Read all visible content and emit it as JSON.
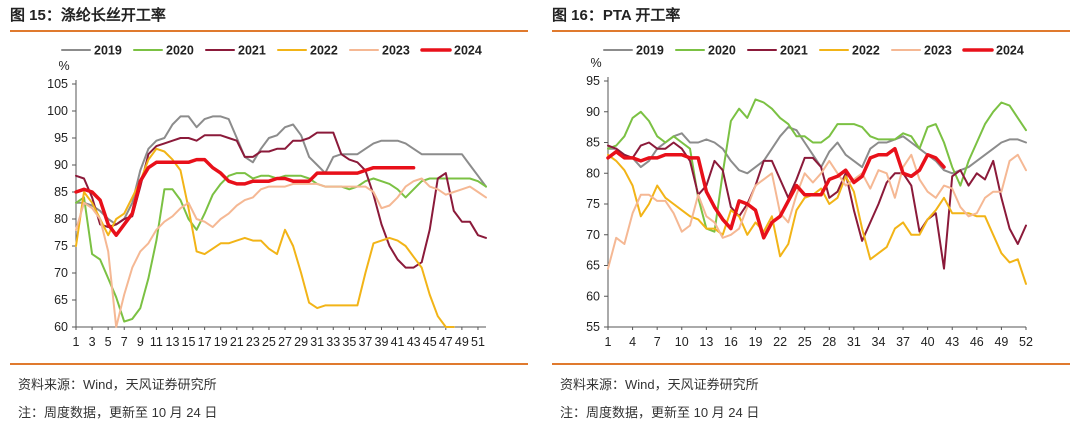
{
  "panels": [
    {
      "title": "图 15：涤纶长丝开工率",
      "source": "资料来源：Wind，天风证券研究所",
      "note": "注：周度数据，更新至 10 月 24 日"
    },
    {
      "title": "图 16：PTA 开工率",
      "source": "资料来源：Wind，天风证券研究所",
      "note": "注：周度数据，更新至 10 月 24 日"
    }
  ],
  "chart_data": [
    {
      "type": "line",
      "title": "图 15：涤纶长丝开工率",
      "ylabel": "%",
      "ylim": [
        60,
        105
      ],
      "yticks": [
        60,
        65,
        70,
        75,
        80,
        85,
        90,
        95,
        100,
        105
      ],
      "xlim": [
        1,
        52
      ],
      "xticks": [
        1,
        3,
        5,
        7,
        9,
        11,
        13,
        15,
        17,
        19,
        21,
        23,
        25,
        27,
        29,
        31,
        33,
        35,
        37,
        39,
        41,
        43,
        45,
        47,
        49,
        51
      ],
      "grid": false,
      "legend": "top",
      "series": [
        {
          "name": "2019",
          "color": "#8C8C8C",
          "width": 2,
          "values": [
            83,
            83,
            82.5,
            81.5,
            80,
            79,
            80,
            83,
            89,
            93,
            94.5,
            95,
            97.5,
            99,
            99,
            97,
            98.5,
            99,
            99,
            98.5,
            95,
            91.5,
            90.5,
            93,
            95,
            95.5,
            97,
            97.5,
            95.5,
            91.5,
            90,
            88.5,
            91.5,
            92,
            92,
            92,
            93,
            94,
            94.5,
            94.5,
            94.5,
            94,
            93,
            92,
            92,
            92,
            92,
            92,
            92,
            90,
            88,
            86
          ]
        },
        {
          "name": "2020",
          "color": "#7BC143",
          "width": 2,
          "values": [
            83,
            84,
            73.5,
            72.5,
            69,
            65.5,
            61,
            61.5,
            63.5,
            69,
            76,
            85.5,
            85.5,
            83.5,
            80,
            78,
            81,
            84.5,
            86.5,
            88,
            88.5,
            88.5,
            87.5,
            88,
            88,
            87.5,
            88,
            88,
            88,
            87.5,
            86.5,
            86,
            86,
            86,
            85.5,
            86,
            87,
            87.5,
            87,
            86.5,
            85.5,
            84,
            85.5,
            87,
            87.5,
            87.5,
            87.5,
            87.5,
            87.5,
            87.5,
            87,
            86
          ]
        },
        {
          "name": "2021",
          "color": "#8B1A3A",
          "width": 2,
          "values": [
            88,
            87.5,
            84,
            79,
            78.5,
            79,
            80,
            80.5,
            86,
            92,
            93.5,
            94,
            94.5,
            95,
            95,
            94.5,
            95.5,
            95.5,
            95.5,
            95,
            94.5,
            91.5,
            91.5,
            92.5,
            92.5,
            93,
            93,
            94.5,
            94.5,
            95,
            96,
            96,
            96,
            92,
            91,
            90.5,
            89,
            84.5,
            79,
            75,
            72.5,
            71,
            71,
            72,
            78,
            87.5,
            88.5,
            81.5,
            79.5,
            79.5,
            77,
            76.5
          ]
        },
        {
          "name": "2022",
          "color": "#F2B417",
          "width": 2,
          "values": [
            75,
            85,
            83,
            80,
            77,
            80,
            81,
            84,
            87,
            91,
            93,
            92.5,
            91,
            89,
            82,
            74,
            73.5,
            74.5,
            75.5,
            75.5,
            76,
            76.5,
            76,
            76,
            74.5,
            73.5,
            78,
            75,
            70,
            64.5,
            63.5,
            64,
            64,
            64,
            64,
            64,
            70,
            75.5,
            76,
            76.5,
            76,
            75,
            73,
            71,
            66,
            62,
            60,
            60,
            null,
            null,
            null,
            null
          ]
        },
        {
          "name": "2023",
          "color": "#F5B894",
          "width": 2,
          "values": [
            78,
            83,
            82,
            80,
            74,
            60,
            66,
            71,
            74,
            75.5,
            78,
            79.5,
            80.5,
            82,
            83,
            80,
            79.5,
            78.5,
            80,
            81,
            82.5,
            83.5,
            84,
            85.5,
            86,
            86,
            86,
            86.5,
            86.5,
            86.5,
            86.5,
            86,
            86,
            86,
            86,
            86,
            86,
            85,
            82,
            82.5,
            84,
            86,
            87,
            87.5,
            86,
            85.5,
            84.5,
            85,
            85.5,
            86,
            85,
            84
          ]
        },
        {
          "name": "2024",
          "color": "#E8101A",
          "width": 3.5,
          "values": [
            85,
            85.5,
            85,
            83.5,
            79,
            77,
            79,
            81,
            87,
            89.5,
            90.5,
            90.5,
            90.5,
            90.5,
            90.5,
            91,
            91,
            89.5,
            88.5,
            87,
            86.5,
            86.5,
            87,
            87,
            87,
            87.5,
            87.5,
            87,
            87,
            87,
            88.5,
            88.5,
            88.5,
            88.5,
            88.5,
            88.5,
            89,
            89.5,
            89.5,
            89.5,
            89.5,
            89.5,
            89.5,
            null,
            null,
            null,
            null,
            null,
            null,
            null,
            null,
            null
          ]
        }
      ]
    },
    {
      "type": "line",
      "title": "图 16：PTA 开工率",
      "ylabel": "%",
      "ylim": [
        55,
        95
      ],
      "yticks": [
        55,
        60,
        65,
        70,
        75,
        80,
        85,
        90,
        95
      ],
      "xlim": [
        1,
        52
      ],
      "xticks": [
        1,
        4,
        7,
        10,
        13,
        16,
        19,
        22,
        25,
        28,
        31,
        34,
        37,
        40,
        43,
        46,
        49,
        52
      ],
      "grid": false,
      "legend": "top",
      "series": [
        {
          "name": "2019",
          "color": "#8C8C8C",
          "width": 2,
          "values": [
            84,
            84,
            83,
            82.5,
            81,
            82,
            84,
            85,
            86,
            86.5,
            85,
            85,
            85.5,
            85,
            84,
            82,
            80.5,
            80,
            81,
            82,
            84,
            86,
            87.5,
            87,
            85,
            83,
            81,
            83.5,
            85,
            83,
            82,
            81,
            84,
            85,
            85,
            85.5,
            86,
            85,
            84,
            83,
            82,
            80.5,
            80,
            80.5,
            81,
            82,
            83,
            84,
            85,
            85.5,
            85.5,
            85
          ]
        },
        {
          "name": "2020",
          "color": "#7BC143",
          "width": 2,
          "values": [
            84,
            84.5,
            86,
            89,
            90,
            88.5,
            86,
            85,
            86,
            85,
            84,
            76,
            71,
            70.5,
            80,
            88.5,
            90.5,
            89,
            92,
            91.5,
            90.5,
            89,
            88,
            86,
            86,
            85,
            85,
            86,
            88,
            88,
            88,
            87.5,
            86,
            85.5,
            85.5,
            85.5,
            86.5,
            86,
            84,
            87.5,
            88,
            85,
            81,
            78,
            82,
            85,
            88,
            90,
            91.5,
            91,
            89,
            87
          ]
        },
        {
          "name": "2021",
          "color": "#8B1A3A",
          "width": 2,
          "values": [
            84.5,
            84,
            83,
            82.5,
            84.5,
            85,
            84,
            84,
            85,
            84,
            82,
            76.5,
            78,
            82,
            80.5,
            74.5,
            73,
            75,
            78,
            82,
            82,
            79,
            76,
            79,
            82.5,
            82.5,
            81,
            76,
            77,
            80,
            74,
            69,
            72,
            75,
            78.5,
            80,
            80,
            78,
            70.5,
            72.5,
            73.5,
            64.5,
            79.5,
            80.5,
            78,
            80,
            79,
            82,
            76,
            71,
            68.5,
            71.5
          ]
        },
        {
          "name": "2022",
          "color": "#F2B417",
          "width": 2,
          "values": [
            83,
            82,
            80.5,
            78,
            73,
            75,
            78,
            76,
            75,
            74,
            73,
            72.5,
            71,
            71,
            70,
            74,
            73,
            70,
            72,
            70.5,
            73,
            66.5,
            68.5,
            74,
            76,
            76.5,
            77.5,
            75,
            76,
            79.5,
            77,
            71,
            66,
            67,
            68,
            71,
            72,
            70,
            70,
            72.5,
            74,
            76,
            73.5,
            73.5,
            73.5,
            73,
            73,
            70,
            67,
            65.5,
            66,
            62
          ]
        },
        {
          "name": "2023",
          "color": "#F5B894",
          "width": 2,
          "values": [
            64.5,
            69.5,
            68.5,
            73.5,
            76.5,
            76.5,
            75.5,
            75.5,
            73.5,
            70.5,
            71.5,
            76.5,
            73,
            72,
            69.5,
            70,
            71,
            74.5,
            78,
            79,
            80,
            73.5,
            72,
            76.5,
            80,
            78.5,
            80,
            82,
            80,
            78,
            79,
            80,
            77.5,
            80.5,
            80,
            76,
            81,
            83,
            79,
            77,
            76,
            78,
            77.5,
            74.5,
            73,
            73.5,
            76,
            77,
            77,
            82,
            83,
            80.5
          ]
        },
        {
          "name": "2024",
          "color": "#E8101A",
          "width": 3.5,
          "values": [
            82.5,
            83.5,
            82.5,
            82.5,
            82,
            82.5,
            82.5,
            83,
            83,
            83,
            82.5,
            82.5,
            77,
            74.5,
            72.5,
            71,
            75.5,
            75,
            74,
            69.5,
            72,
            73,
            75.5,
            78,
            76.5,
            76.5,
            76.5,
            79,
            79.5,
            80.5,
            78.5,
            79.5,
            82.5,
            83,
            83,
            84,
            80,
            79.5,
            80.5,
            83,
            82.5,
            81,
            null,
            null,
            null,
            null,
            null,
            null,
            null,
            null,
            null,
            null
          ]
        }
      ]
    }
  ]
}
